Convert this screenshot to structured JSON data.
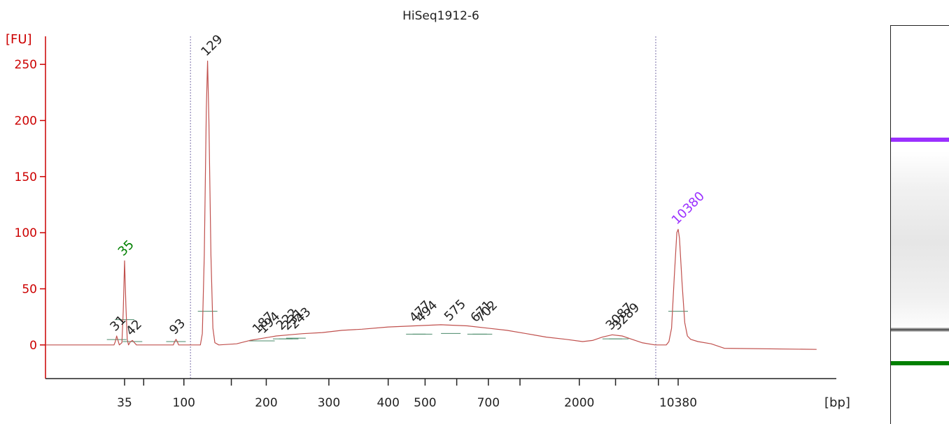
{
  "chart_data": {
    "type": "line",
    "title": "HiSeq1912-6",
    "ylabel": "[FU]",
    "xlabel": "[bp]",
    "ylim": [
      -30,
      275
    ],
    "yticks": [
      0,
      50,
      100,
      150,
      200,
      250
    ],
    "x_axis_scale": "electrophoresis size ladder (non-linear); x values are migration positions, 0 = lower marker 35 bp, 100 = upper marker 10380 bp",
    "xlim": [
      -12,
      108
    ],
    "xticks": [
      {
        "pos": 0,
        "label": "35"
      },
      {
        "pos": 2.9,
        "label": ""
      },
      {
        "pos": 9.0,
        "label": "100"
      },
      {
        "pos": 16.2,
        "label": ""
      },
      {
        "pos": 21.5,
        "label": "200"
      },
      {
        "pos": 31.0,
        "label": "300"
      },
      {
        "pos": 40.0,
        "label": "400"
      },
      {
        "pos": 45.6,
        "label": "500"
      },
      {
        "pos": 50.4,
        "label": ""
      },
      {
        "pos": 55.2,
        "label": "700"
      },
      {
        "pos": 60.0,
        "label": ""
      },
      {
        "pos": 69.0,
        "label": "2000"
      },
      {
        "pos": 74.5,
        "label": ""
      },
      {
        "pos": 81.0,
        "label": ""
      },
      {
        "pos": 84.0,
        "label": "10380"
      }
    ],
    "marker_lines": [
      10,
      80.6
    ],
    "series": [
      {
        "values": [
          [
            -12,
            0
          ],
          [
            -1.6,
            0
          ],
          [
            -1.4,
            3
          ],
          [
            -1.2,
            8
          ],
          [
            -1.0,
            4
          ],
          [
            -0.8,
            0
          ],
          [
            -0.4,
            2
          ],
          [
            -0.2,
            30
          ],
          [
            0,
            75
          ],
          [
            0.2,
            35
          ],
          [
            0.4,
            5
          ],
          [
            0.6,
            0
          ],
          [
            0.9,
            3
          ],
          [
            1.2,
            4
          ],
          [
            1.5,
            2
          ],
          [
            1.8,
            0
          ],
          [
            7.4,
            0
          ],
          [
            7.6,
            3
          ],
          [
            7.8,
            5
          ],
          [
            8.0,
            3
          ],
          [
            8.2,
            0
          ],
          [
            11.5,
            0
          ],
          [
            11.8,
            10
          ],
          [
            12.1,
            80
          ],
          [
            12.4,
            210
          ],
          [
            12.6,
            253
          ],
          [
            12.8,
            200
          ],
          [
            13.1,
            80
          ],
          [
            13.4,
            15
          ],
          [
            13.7,
            2
          ],
          [
            14.3,
            0
          ],
          [
            17,
            1
          ],
          [
            19,
            4
          ],
          [
            21,
            6
          ],
          [
            23,
            8
          ],
          [
            25,
            9
          ],
          [
            27,
            10
          ],
          [
            30,
            11
          ],
          [
            33,
            13
          ],
          [
            36,
            14
          ],
          [
            40,
            16
          ],
          [
            44,
            17
          ],
          [
            48,
            18
          ],
          [
            52,
            17
          ],
          [
            55,
            15
          ],
          [
            58,
            13
          ],
          [
            61,
            10
          ],
          [
            64,
            7
          ],
          [
            67,
            5
          ],
          [
            69.5,
            3
          ],
          [
            71,
            4
          ],
          [
            72.5,
            7
          ],
          [
            74,
            9
          ],
          [
            75.5,
            8
          ],
          [
            77,
            5
          ],
          [
            78.5,
            2
          ],
          [
            80.5,
            0
          ],
          [
            82.2,
            0
          ],
          [
            82.6,
            3
          ],
          [
            83.0,
            15
          ],
          [
            83.4,
            60
          ],
          [
            83.8,
            100
          ],
          [
            84.0,
            103
          ],
          [
            84.2,
            95
          ],
          [
            84.6,
            55
          ],
          [
            85.0,
            20
          ],
          [
            85.4,
            8
          ],
          [
            85.9,
            5
          ],
          [
            87,
            3
          ],
          [
            89,
            1
          ],
          [
            91,
            -3
          ],
          [
            105,
            -4
          ]
        ]
      }
    ],
    "peak_labels": [
      {
        "x": -1.2,
        "y": 8,
        "label": "31",
        "color": "#222222"
      },
      {
        "x": 0,
        "y": 75,
        "label": "35",
        "color": "#008000"
      },
      {
        "x": 1.2,
        "y": 4,
        "label": "42",
        "color": "#222222"
      },
      {
        "x": 7.8,
        "y": 5,
        "label": "93",
        "color": "#222222"
      },
      {
        "x": 12.6,
        "y": 253,
        "label": "129",
        "color": "#222222"
      },
      {
        "x": 20.4,
        "y": 6,
        "label": "187",
        "color": "#222222"
      },
      {
        "x": 21.3,
        "y": 6,
        "label": "194",
        "color": "#222222"
      },
      {
        "x": 24.0,
        "y": 9,
        "label": "222",
        "color": "#222222"
      },
      {
        "x": 24.9,
        "y": 9,
        "label": "231",
        "color": "#222222"
      },
      {
        "x": 26.0,
        "y": 10,
        "label": "243",
        "color": "#222222"
      },
      {
        "x": 44.2,
        "y": 16,
        "label": "477",
        "color": "#222222"
      },
      {
        "x": 45.2,
        "y": 16,
        "label": "494",
        "color": "#222222"
      },
      {
        "x": 49.5,
        "y": 17,
        "label": "575",
        "color": "#222222"
      },
      {
        "x": 53.5,
        "y": 16,
        "label": "671",
        "color": "#222222"
      },
      {
        "x": 54.3,
        "y": 16,
        "label": "702",
        "color": "#222222"
      },
      {
        "x": 74.0,
        "y": 9,
        "label": "3087",
        "color": "#222222"
      },
      {
        "x": 75.0,
        "y": 9,
        "label": "3289",
        "color": "#222222"
      },
      {
        "x": 84.0,
        "y": 103,
        "label": "10380",
        "color": "#9b30ff"
      }
    ],
    "colors": {
      "axis": "#cc0000",
      "trace": "#c0504d",
      "lower_marker": "#008000",
      "upper_marker": "#9b30ff",
      "labels": "#222222"
    }
  },
  "gel": {
    "colors": {
      "upper_band": "#9b30ff",
      "sample_band": "#555555",
      "lower_band": "#008000"
    }
  }
}
